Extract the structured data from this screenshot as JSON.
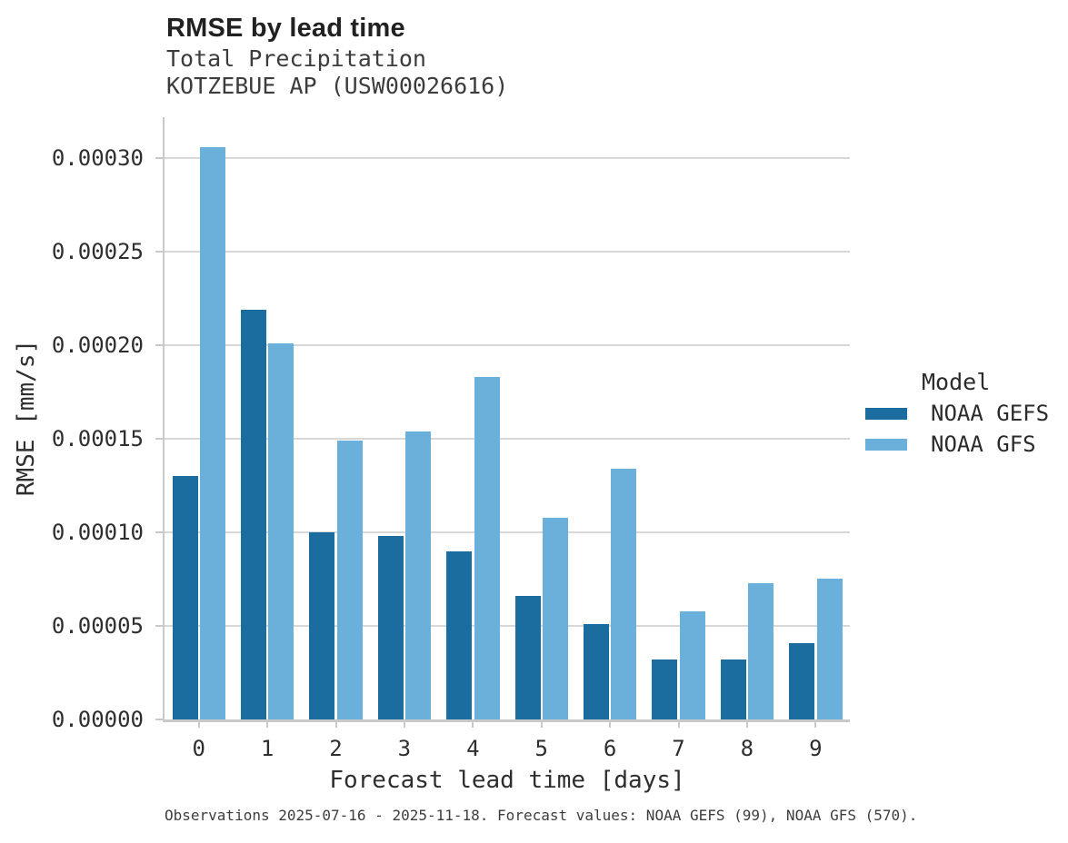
{
  "header": {
    "title": "RMSE by lead time",
    "subtitle_line1": "Total Precipitation",
    "subtitle_line2": "KOTZEBUE AP (USW00026616)"
  },
  "chart_data": {
    "type": "bar",
    "title": "RMSE by lead time",
    "subtitle": [
      "Total Precipitation",
      "KOTZEBUE AP (USW00026616)"
    ],
    "xlabel": "Forecast lead time [days]",
    "ylabel": "RMSE [mm/s]",
    "categories": [
      "0",
      "1",
      "2",
      "3",
      "4",
      "5",
      "6",
      "7",
      "8",
      "9"
    ],
    "series": [
      {
        "name": "NOAA GEFS",
        "color": "#1c6d9f",
        "values": [
          0.00013,
          0.000219,
          0.0001,
          9.8e-05,
          9e-05,
          6.6e-05,
          5.1e-05,
          3.2e-05,
          3.2e-05,
          4.1e-05
        ]
      },
      {
        "name": "NOAA GFS",
        "color": "#6bb0da",
        "values": [
          0.000306,
          0.000201,
          0.000149,
          0.000154,
          0.000183,
          0.000108,
          0.000134,
          5.8e-05,
          7.3e-05,
          7.5e-05
        ]
      }
    ],
    "ylim": [
      0,
      0.0003
    ],
    "ytick_step": 5e-05,
    "yticks": [
      "0.00000",
      "0.00005",
      "0.00010",
      "0.00015",
      "0.00020",
      "0.00025",
      "0.00030"
    ],
    "grid": "horizontal",
    "legend_title": "Model",
    "legend_position": "right"
  },
  "legend": {
    "title": "Model",
    "items": [
      {
        "label": "NOAA GEFS",
        "color": "#1c6d9f"
      },
      {
        "label": "NOAA GFS",
        "color": "#6bb0da"
      }
    ]
  },
  "footer": {
    "text": "Observations 2025-07-16 - 2025-11-18. Forecast values: NOAA GEFS (99), NOAA GFS (570)."
  },
  "colors": {
    "gridline": "#d8d8d8",
    "spine": "#c9c9c9",
    "text": "#2e2e2e",
    "series_dark": "#1c6d9f",
    "series_light": "#6bb0da"
  }
}
